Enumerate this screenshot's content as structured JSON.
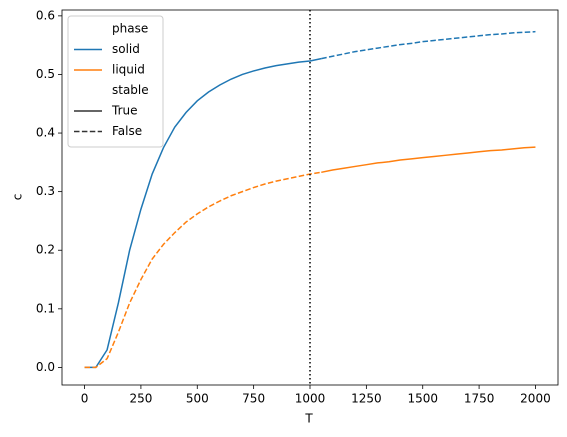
{
  "chart_data": {
    "type": "line",
    "xlabel": "T",
    "ylabel": "c",
    "x": [
      0,
      50,
      100,
      150,
      200,
      250,
      300,
      350,
      400,
      450,
      500,
      550,
      600,
      650,
      700,
      750,
      800,
      850,
      900,
      950,
      1000,
      1050,
      1100,
      1150,
      1200,
      1250,
      1300,
      1350,
      1400,
      1450,
      1500,
      1550,
      1600,
      1650,
      1700,
      1750,
      1800,
      1850,
      1900,
      1950,
      2000
    ],
    "series": [
      {
        "name": "solid",
        "color": "#1f77b4",
        "values": [
          0,
          0.0,
          0.03,
          0.11,
          0.2,
          0.27,
          0.33,
          0.375,
          0.41,
          0.435,
          0.455,
          0.47,
          0.482,
          0.492,
          0.5,
          0.506,
          0.511,
          0.515,
          0.518,
          0.521,
          0.523,
          0.527,
          0.531,
          0.535,
          0.539,
          0.542,
          0.545,
          0.548,
          0.551,
          0.553,
          0.556,
          0.558,
          0.56,
          0.562,
          0.564,
          0.566,
          0.568,
          0.569,
          0.571,
          0.572,
          0.573
        ],
        "stable": [
          true,
          true,
          true,
          true,
          true,
          true,
          true,
          true,
          true,
          true,
          true,
          true,
          true,
          true,
          true,
          true,
          true,
          true,
          true,
          true,
          true,
          false,
          false,
          false,
          false,
          false,
          false,
          false,
          false,
          false,
          false,
          false,
          false,
          false,
          false,
          false,
          false,
          false,
          false,
          false,
          false
        ]
      },
      {
        "name": "liquid",
        "color": "#ff7f0e",
        "values": [
          0,
          0.0,
          0.015,
          0.06,
          0.11,
          0.15,
          0.185,
          0.21,
          0.23,
          0.248,
          0.262,
          0.274,
          0.284,
          0.293,
          0.3,
          0.307,
          0.313,
          0.318,
          0.322,
          0.326,
          0.33,
          0.333,
          0.337,
          0.34,
          0.343,
          0.346,
          0.349,
          0.351,
          0.354,
          0.356,
          0.358,
          0.36,
          0.362,
          0.364,
          0.366,
          0.368,
          0.37,
          0.371,
          0.373,
          0.375,
          0.376
        ],
        "stable": [
          false,
          false,
          false,
          false,
          false,
          false,
          false,
          false,
          false,
          false,
          false,
          false,
          false,
          false,
          false,
          false,
          false,
          false,
          false,
          false,
          false,
          true,
          true,
          true,
          true,
          true,
          true,
          true,
          true,
          true,
          true,
          true,
          true,
          true,
          true,
          true,
          true,
          true,
          true,
          true,
          true
        ]
      }
    ],
    "legend": {
      "hue_title": "phase",
      "style_title": "stable",
      "styles": [
        {
          "label": "True",
          "stable": true,
          "dash": "solid"
        },
        {
          "label": "False",
          "stable": false,
          "dash": "dashed"
        }
      ],
      "corner": "upper left"
    },
    "vline": {
      "x": 1000,
      "color": "#000000",
      "dash": "dotted"
    },
    "xlim": [
      -100,
      2100
    ],
    "xticks": [
      0,
      250,
      500,
      750,
      1000,
      1250,
      1500,
      1750,
      2000
    ],
    "ylim": [
      -0.03,
      0.61
    ],
    "yticks": [
      {
        "value": 0,
        "label": "0.0"
      },
      {
        "value": 0.1,
        "label": "0.1"
      },
      {
        "value": 0.2,
        "label": "0.2"
      },
      {
        "value": 0.3,
        "label": "0.3"
      },
      {
        "value": 0.4,
        "label": "0.4"
      },
      {
        "value": 0.5,
        "label": "0.5"
      },
      {
        "value": 0.6,
        "label": "0.6"
      }
    ],
    "grid": false
  }
}
